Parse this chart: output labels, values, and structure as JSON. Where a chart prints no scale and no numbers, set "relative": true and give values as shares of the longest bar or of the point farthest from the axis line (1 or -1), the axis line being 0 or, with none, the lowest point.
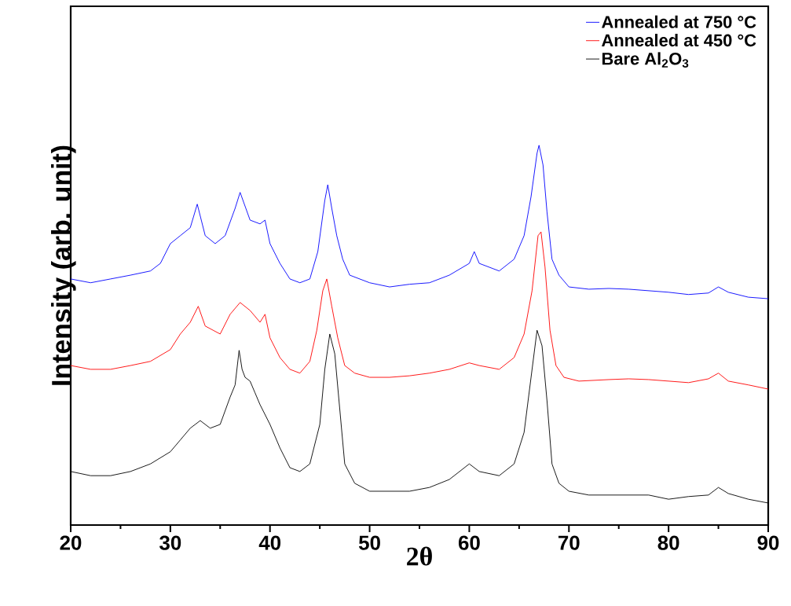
{
  "chart_data": {
    "type": "line",
    "relative": true,
    "xlabel": "2θ",
    "ylabel": "Intensity (arb. unit)",
    "xlim": [
      20,
      90
    ],
    "xticks": [
      20,
      30,
      40,
      50,
      60,
      70,
      80,
      90
    ],
    "tick_labels": "x",
    "legend": "top right",
    "grid": false,
    "marker": "none",
    "line_style": "solid",
    "series": [
      {
        "name": "Annealed at 750 °C",
        "color": "#0000ff",
        "x": [
          20,
          22,
          24,
          26,
          28,
          29,
          30,
          31,
          32,
          32.7,
          33.5,
          34.5,
          35.5,
          36.5,
          37,
          38,
          39,
          39.5,
          40,
          41,
          42,
          43,
          44,
          44.8,
          45.5,
          45.8,
          46.2,
          46.7,
          47.3,
          48,
          50,
          52,
          54,
          56,
          58,
          60,
          60.5,
          61,
          63,
          64.5,
          65.5,
          66.2,
          66.8,
          67,
          67.4,
          67.8,
          68.3,
          69,
          70,
          72,
          74,
          76,
          78,
          80,
          82,
          84,
          85,
          86,
          88,
          90
        ],
        "values": [
          0.648,
          0.638,
          0.648,
          0.658,
          0.669,
          0.689,
          0.741,
          0.762,
          0.783,
          0.845,
          0.762,
          0.741,
          0.762,
          0.834,
          0.876,
          0.803,
          0.793,
          0.803,
          0.741,
          0.689,
          0.648,
          0.638,
          0.648,
          0.72,
          0.855,
          0.896,
          0.834,
          0.762,
          0.7,
          0.658,
          0.638,
          0.627,
          0.634,
          0.638,
          0.658,
          0.689,
          0.72,
          0.689,
          0.669,
          0.7,
          0.762,
          0.865,
          0.979,
          1.0,
          0.948,
          0.824,
          0.7,
          0.658,
          0.627,
          0.621,
          0.623,
          0.621,
          0.617,
          0.613,
          0.607,
          0.611,
          0.627,
          0.613,
          0.6,
          0.596
        ]
      },
      {
        "name": "Annealed at 450 °C",
        "color": "#ff0000",
        "x": [
          20,
          22,
          24,
          26,
          28,
          30,
          31,
          32,
          32.8,
          33.5,
          35,
          36,
          37,
          38,
          39,
          39.5,
          40,
          41,
          42,
          43,
          44,
          44.7,
          45.3,
          45.7,
          46.2,
          46.8,
          47.5,
          48.5,
          50,
          52,
          54,
          56,
          58,
          60,
          61,
          63,
          64.5,
          65.5,
          66.3,
          66.9,
          67.2,
          67.6,
          68.1,
          68.7,
          69.5,
          71,
          74,
          76,
          78,
          80,
          82,
          84,
          85,
          86,
          88,
          90
        ],
        "values": [
          0.42,
          0.41,
          0.41,
          0.42,
          0.431,
          0.462,
          0.503,
          0.534,
          0.576,
          0.524,
          0.503,
          0.555,
          0.586,
          0.565,
          0.534,
          0.555,
          0.493,
          0.441,
          0.41,
          0.4,
          0.431,
          0.513,
          0.617,
          0.648,
          0.576,
          0.493,
          0.42,
          0.4,
          0.389,
          0.389,
          0.393,
          0.4,
          0.41,
          0.427,
          0.42,
          0.41,
          0.441,
          0.503,
          0.617,
          0.762,
          0.772,
          0.679,
          0.513,
          0.42,
          0.389,
          0.379,
          0.383,
          0.385,
          0.383,
          0.379,
          0.375,
          0.385,
          0.4,
          0.379,
          0.369,
          0.358
        ]
      },
      {
        "name": "Bare Al$_{2}$O$_{3}$",
        "color": "#000000",
        "x": [
          20,
          22,
          24,
          26,
          28,
          30,
          31,
          32,
          33,
          34,
          35,
          36,
          36.5,
          36.9,
          37.2,
          37.5,
          38,
          38.5,
          39,
          40,
          41,
          42,
          43,
          44,
          45,
          45.5,
          46,
          46.5,
          47,
          47.5,
          48.5,
          50,
          54,
          56,
          58,
          60,
          61,
          63,
          64.5,
          65.5,
          66.2,
          66.8,
          67.3,
          67.8,
          68.3,
          69,
          70,
          72,
          75,
          78,
          80,
          82,
          84,
          85,
          86,
          88,
          90
        ],
        "values": [
          0.141,
          0.13,
          0.13,
          0.141,
          0.161,
          0.193,
          0.224,
          0.255,
          0.275,
          0.255,
          0.265,
          0.337,
          0.369,
          0.46,
          0.41,
          0.389,
          0.379,
          0.348,
          0.317,
          0.265,
          0.203,
          0.151,
          0.141,
          0.161,
          0.265,
          0.41,
          0.503,
          0.451,
          0.306,
          0.161,
          0.11,
          0.089,
          0.089,
          0.099,
          0.12,
          0.161,
          0.141,
          0.13,
          0.161,
          0.244,
          0.389,
          0.513,
          0.472,
          0.327,
          0.161,
          0.11,
          0.089,
          0.079,
          0.079,
          0.079,
          0.068,
          0.075,
          0.079,
          0.099,
          0.083,
          0.068,
          0.058
        ]
      }
    ]
  }
}
